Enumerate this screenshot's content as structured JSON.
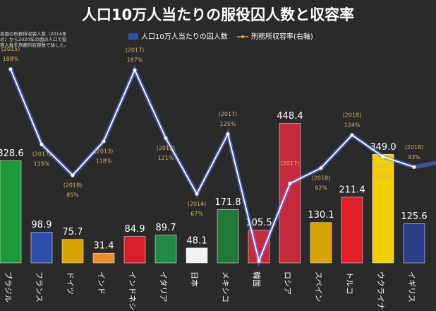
{
  "chart_data": {
    "type": "bar_line",
    "title": "人口10万人当たりの服役囚人数と収容率",
    "note": [
      "各国の刑務所収容人数（2014年",
      "の）から2020年の国の人口で割",
      "容人数を刑務所収容数で除した。"
    ],
    "categories": [
      "ブラジル",
      "フランス",
      "ドイツ",
      "インド",
      "インドネシア",
      "イタリア",
      "日本",
      "メキシコ",
      "韓国",
      "ロシア",
      "スペイン",
      "トルコ",
      "ウクライナ",
      "イギリス"
    ],
    "series": [
      {
        "name": "人口10万人当たりの囚人数",
        "colors": [
          "#1e9a3a",
          "#2b4fa8",
          "#d8a300",
          "#f08a24",
          "#d81e28",
          "#1f8a45",
          "#f2f2f2",
          "#1f7a3a",
          "#c8283c",
          "#c8283c",
          "#d8a300",
          "#e21e26",
          "#f2d000",
          "#2b3f8c"
        ],
        "values": [
          328.6,
          98.9,
          75.7,
          31.4,
          84.9,
          89.7,
          48.1,
          171.8,
          105.5,
          448.4,
          130.1,
          211.4,
          349.0,
          125.6
        ],
        "value_labels": [
          "328.6",
          "98.9",
          "75.7",
          "31.4",
          "84.9",
          "89.7",
          "48.1",
          "171.8",
          "105.5",
          "448.4",
          "130.1",
          "211.4",
          "349.0",
          "125.6"
        ]
      },
      {
        "name": "刑務所収容率(右軸)",
        "axis": "y2",
        "color": "#5a7cff",
        "values": [
          188,
          115,
          85,
          118,
          187,
          121,
          67,
          125,
          2,
          77,
          92,
          124,
          103,
          93
        ],
        "value_labels": [
          "188%",
          "115%",
          "85%",
          "118%",
          "187%",
          "121%",
          "67%",
          "125%",
          null,
          null,
          "92%",
          "124%",
          "103%",
          "93%"
        ],
        "years": [
          "(2015)",
          "(2017)",
          "(2018)",
          "(2013)",
          "(2017)",
          "(2018)",
          "(2014)",
          "(2017)",
          null,
          "(2017)",
          "(2018)",
          "(2018)",
          "(2011)",
          "(2018)"
        ]
      }
    ],
    "ylim": [
      0,
      686
    ],
    "y2lim": [
      0,
      207
    ]
  }
}
